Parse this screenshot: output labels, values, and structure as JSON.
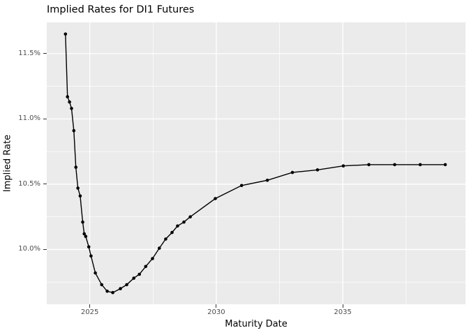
{
  "figure": {
    "title": "Implied Rates for DI1 Futures",
    "x_axis_title": "Maturity Date",
    "y_axis_title": "Implied Rate"
  },
  "colors": {
    "figure_bg": "#FFFFFF",
    "panel_bg": "#EBEBEB",
    "grid_major": "#FFFFFF",
    "grid_minor": "#FFFFFF",
    "series_color": "#000000",
    "tick_label": "#4D4D4D",
    "tick_mark": "#333333",
    "title_text": "#000000"
  },
  "chart_data": {
    "type": "line",
    "title": "Implied Rates for DI1 Futures",
    "xlabel": "Maturity Date",
    "ylabel": "Implied Rate",
    "xlim": [
      2023.3,
      2039.85
    ],
    "ylim": [
      9.58,
      11.74
    ],
    "grid": true,
    "legend": false,
    "marker": "point",
    "x_ticks": {
      "values": [
        2025,
        2030,
        2035
      ],
      "labels": [
        "2025",
        "2030",
        "2035"
      ]
    },
    "y_ticks": {
      "values": [
        11.5,
        11.0,
        10.5,
        10.0
      ],
      "labels": [
        "11.5%",
        "11.0%",
        "10.5%",
        "10.0%"
      ]
    },
    "x_minor_ticks": [
      2027.5,
      2032.5,
      2037.5
    ],
    "y_minor_ticks": [
      11.25,
      10.75,
      10.25,
      9.75
    ],
    "series": [
      {
        "name": "implied_rate",
        "x": [
          2024.04,
          2024.12,
          2024.2,
          2024.28,
          2024.37,
          2024.45,
          2024.53,
          2024.62,
          2024.72,
          2024.78,
          2024.84,
          2024.96,
          2025.05,
          2025.22,
          2025.47,
          2025.69,
          2025.91,
          2026.21,
          2026.46,
          2026.74,
          2026.96,
          2027.21,
          2027.48,
          2027.75,
          2028.0,
          2028.25,
          2028.47,
          2028.72,
          2028.97,
          2029.96,
          2031.0,
          2032.02,
          2033.01,
          2034.0,
          2035.02,
          2036.03,
          2037.05,
          2038.06,
          2039.05
        ],
        "y": [
          11.65,
          11.17,
          11.13,
          11.08,
          10.91,
          10.63,
          10.47,
          10.41,
          10.21,
          10.12,
          10.1,
          10.02,
          9.95,
          9.82,
          9.73,
          9.68,
          9.67,
          9.7,
          9.73,
          9.78,
          9.81,
          9.87,
          9.93,
          10.01,
          10.08,
          10.13,
          10.18,
          10.21,
          10.25,
          10.39,
          10.49,
          10.53,
          10.59,
          10.61,
          10.64,
          10.65,
          10.65,
          10.65,
          10.65
        ]
      }
    ]
  }
}
